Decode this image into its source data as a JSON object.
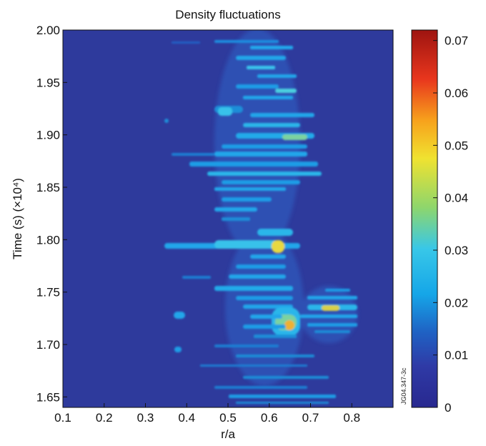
{
  "chart_data": {
    "type": "heatmap",
    "title": "Density fluctuations",
    "xlabel": "r/a",
    "ylabel": "Time (s) (×10⁴)",
    "xlim": [
      0.1,
      0.9
    ],
    "ylim": [
      1.64,
      2.0
    ],
    "x_ticks": [
      "0.1",
      "0.2",
      "0.3",
      "0.4",
      "0.5",
      "0.6",
      "0.7",
      "0.8"
    ],
    "y_ticks": [
      "1.65",
      "1.70",
      "1.75",
      "1.80",
      "1.85",
      "1.90",
      "1.95",
      "2.00"
    ],
    "colorbar": {
      "range": [
        0,
        0.072
      ],
      "ticks": [
        "0",
        "0.01",
        "0.02",
        "0.03",
        "0.04",
        "0.05",
        "0.06",
        "0.07"
      ],
      "colormap": "jet"
    },
    "background_level": 0.006,
    "features": [
      {
        "r": 0.65,
        "t": 1.72,
        "level": 0.05
      },
      {
        "r": 0.64,
        "t": 1.795,
        "level": 0.045
      },
      {
        "r": 0.745,
        "t": 1.733,
        "level": 0.045
      },
      {
        "r": 0.69,
        "t": 1.895,
        "level": 0.04
      },
      {
        "r": 0.62,
        "t": 1.945,
        "level": 0.035
      },
      {
        "r": 0.5,
        "t": 1.923,
        "level": 0.028
      },
      {
        "r": 0.4,
        "t": 1.725,
        "level": 0.025
      },
      {
        "r": 0.6,
        "t": 1.86,
        "level": 0.027
      },
      {
        "r": 0.55,
        "t": 1.775,
        "level": 0.025
      },
      {
        "r": 0.47,
        "t": 1.795,
        "level": 0.028
      }
    ],
    "grid": false,
    "legend": "none"
  },
  "watermark": "JG04.347-3c"
}
